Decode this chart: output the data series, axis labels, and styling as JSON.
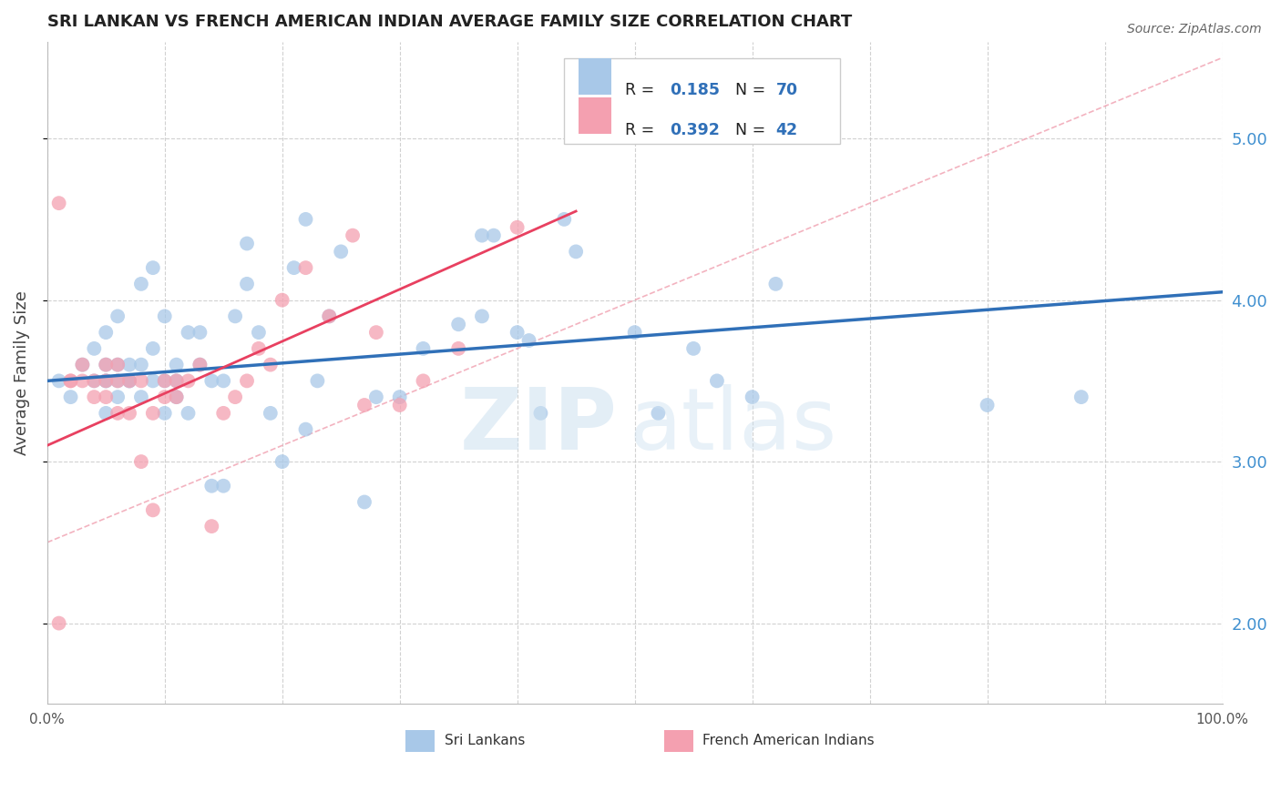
{
  "title": "SRI LANKAN VS FRENCH AMERICAN INDIAN AVERAGE FAMILY SIZE CORRELATION CHART",
  "source": "Source: ZipAtlas.com",
  "ylabel": "Average Family Size",
  "yticks_right": [
    2.0,
    3.0,
    4.0,
    5.0
  ],
  "ymin": 1.5,
  "ymax": 5.6,
  "xmin": 0.0,
  "xmax": 1.0,
  "R_blue": 0.185,
  "N_blue": 70,
  "R_pink": 0.392,
  "N_pink": 42,
  "blue_color": "#a8c8e8",
  "pink_color": "#f4a0b0",
  "blue_line_color": "#3070b8",
  "pink_line_color": "#e84060",
  "diag_line_color": "#f0a0b0",
  "grid_color": "#cccccc",
  "title_color": "#222222",
  "right_axis_color": "#4090d0",
  "legend_label_blue": "Sri Lankans",
  "legend_label_pink": "French American Indians",
  "legend_text_color": "#333333",
  "legend_value_color": "#3070b8",
  "blue_scatter_x": [
    0.01,
    0.02,
    0.03,
    0.04,
    0.04,
    0.05,
    0.05,
    0.05,
    0.05,
    0.05,
    0.06,
    0.06,
    0.06,
    0.06,
    0.07,
    0.07,
    0.07,
    0.08,
    0.08,
    0.08,
    0.09,
    0.09,
    0.09,
    0.1,
    0.1,
    0.1,
    0.11,
    0.11,
    0.11,
    0.12,
    0.12,
    0.13,
    0.13,
    0.14,
    0.14,
    0.15,
    0.15,
    0.16,
    0.17,
    0.17,
    0.18,
    0.19,
    0.2,
    0.21,
    0.22,
    0.22,
    0.23,
    0.24,
    0.25,
    0.27,
    0.28,
    0.3,
    0.32,
    0.35,
    0.37,
    0.37,
    0.38,
    0.4,
    0.41,
    0.42,
    0.44,
    0.45,
    0.5,
    0.52,
    0.55,
    0.57,
    0.6,
    0.62,
    0.8,
    0.88
  ],
  "blue_scatter_y": [
    3.5,
    3.4,
    3.6,
    3.5,
    3.7,
    3.5,
    3.5,
    3.6,
    3.8,
    3.3,
    3.4,
    3.5,
    3.6,
    3.9,
    3.5,
    3.5,
    3.6,
    3.4,
    3.6,
    4.1,
    3.5,
    3.7,
    4.2,
    3.3,
    3.5,
    3.9,
    3.4,
    3.5,
    3.6,
    3.3,
    3.8,
    3.6,
    3.8,
    3.5,
    2.85,
    3.5,
    2.85,
    3.9,
    4.1,
    4.35,
    3.8,
    3.3,
    3.0,
    4.2,
    4.5,
    3.2,
    3.5,
    3.9,
    4.3,
    2.75,
    3.4,
    3.4,
    3.7,
    3.85,
    3.9,
    4.4,
    4.4,
    3.8,
    3.75,
    3.3,
    4.5,
    4.3,
    3.8,
    3.3,
    3.7,
    3.5,
    3.4,
    4.1,
    3.35,
    3.4
  ],
  "pink_scatter_x": [
    0.01,
    0.01,
    0.02,
    0.02,
    0.03,
    0.03,
    0.04,
    0.04,
    0.05,
    0.05,
    0.05,
    0.06,
    0.06,
    0.06,
    0.07,
    0.07,
    0.08,
    0.08,
    0.09,
    0.09,
    0.1,
    0.1,
    0.11,
    0.11,
    0.12,
    0.13,
    0.14,
    0.15,
    0.16,
    0.17,
    0.18,
    0.19,
    0.2,
    0.22,
    0.24,
    0.26,
    0.27,
    0.28,
    0.3,
    0.32,
    0.35,
    0.4
  ],
  "pink_scatter_y": [
    2.0,
    4.6,
    3.5,
    3.5,
    3.5,
    3.6,
    3.4,
    3.5,
    3.4,
    3.5,
    3.6,
    3.3,
    3.5,
    3.6,
    3.3,
    3.5,
    3.5,
    3.0,
    3.3,
    2.7,
    3.4,
    3.5,
    3.4,
    3.5,
    3.5,
    3.6,
    2.6,
    3.3,
    3.4,
    3.5,
    3.7,
    3.6,
    4.0,
    4.2,
    3.9,
    4.4,
    3.35,
    3.8,
    3.35,
    3.5,
    3.7,
    4.45
  ],
  "blue_trend_x": [
    0.0,
    1.0
  ],
  "blue_trend_y": [
    3.5,
    4.05
  ],
  "pink_trend_x": [
    0.0,
    0.45
  ],
  "pink_trend_y": [
    3.1,
    4.55
  ],
  "diag_line_x": [
    0.0,
    1.0
  ],
  "diag_line_y": [
    2.5,
    5.5
  ],
  "watermark_zip_color": "#d0e8f5",
  "watermark_atlas_color": "#c8dff0"
}
